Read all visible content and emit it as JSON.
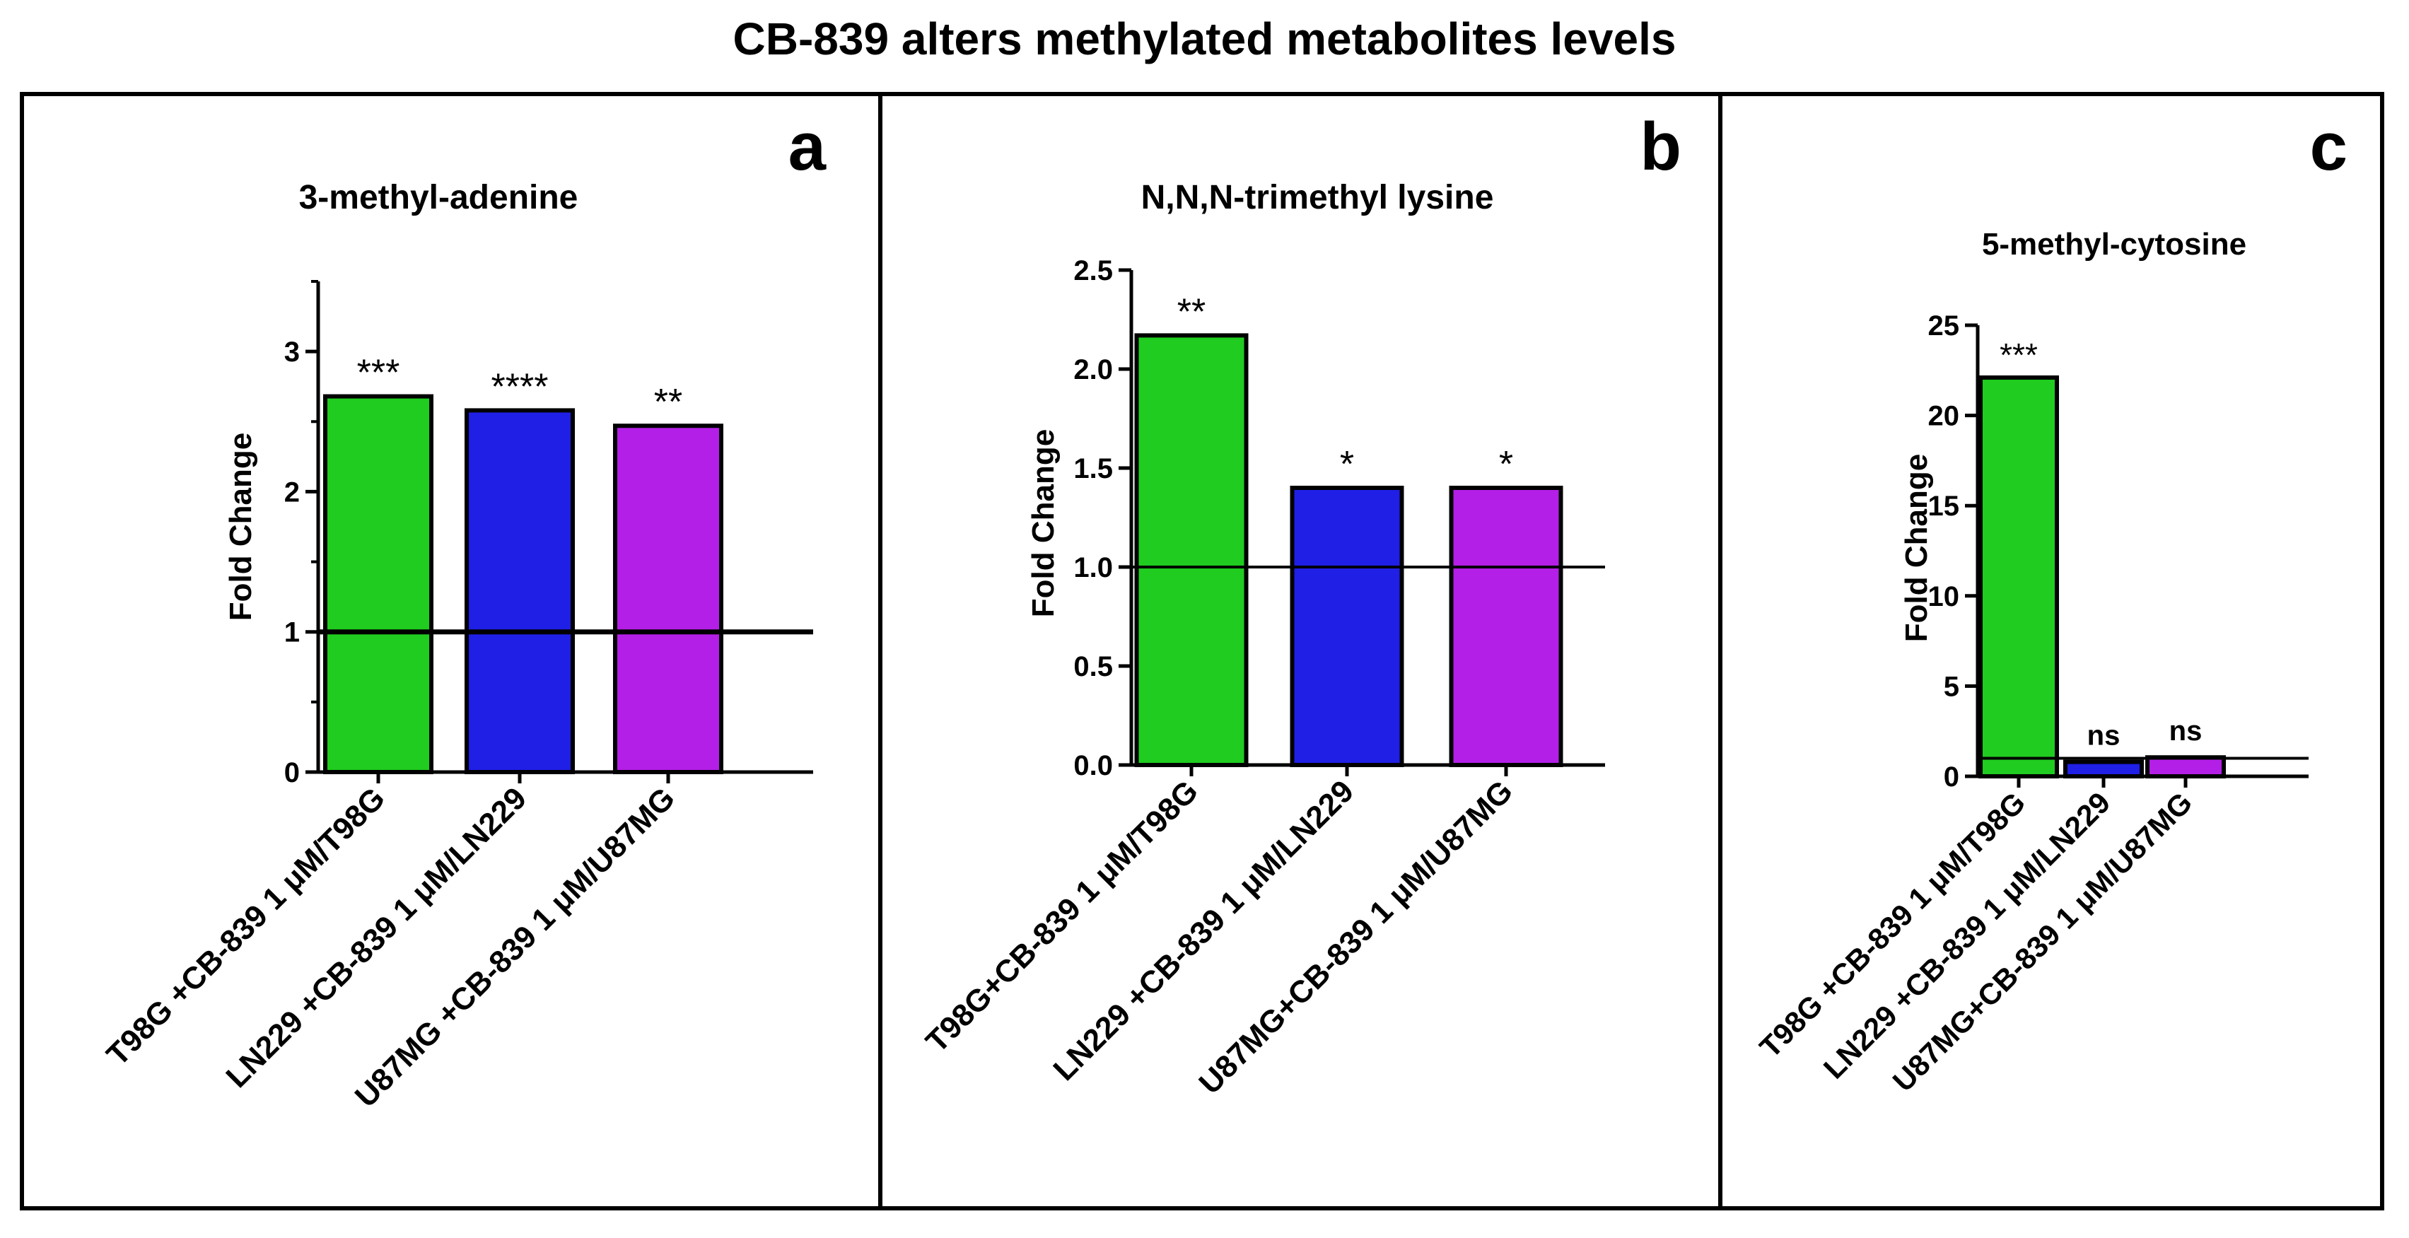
{
  "figure_title": "CB-839 alters methylated metabolites levels",
  "colors": {
    "green": "#1fcc1f",
    "blue": "#1f1fe6",
    "magenta": "#b31fe6",
    "axis": "#000000"
  },
  "chart_data": [
    {
      "type": "bar",
      "panel_label": "a",
      "title": "3-methyl-adenine",
      "xlabel": "",
      "ylabel": "Fold Change",
      "ylim": [
        0,
        3.5
      ],
      "yticks": [
        "0",
        "1",
        "2",
        "3"
      ],
      "reference_line": 1,
      "categories": [
        "T98G +CB-839 1 μM/T98G",
        "LN229 +CB-839 1 μM/LN229",
        "U87MG +CB-839 1 μM/U87MG"
      ],
      "values": [
        2.68,
        2.58,
        2.47
      ],
      "significance": [
        "***",
        "****",
        "**"
      ],
      "colors": [
        "#1fcc1f",
        "#1f1fe6",
        "#b31fe6"
      ]
    },
    {
      "type": "bar",
      "panel_label": "b",
      "title": "N,N,N-trimethyl lysine",
      "xlabel": "",
      "ylabel": "Fold Change",
      "ylim": [
        0,
        2.5
      ],
      "yticks": [
        "0.0",
        "0.5",
        "1.0",
        "1.5",
        "2.0",
        "2.5"
      ],
      "reference_line": 1,
      "categories": [
        "T98G+CB-839 1 μM/T98G",
        "LN229 +CB-839 1 μM/LN229",
        "U87MG+CB-839 1  μM/U87MG"
      ],
      "values": [
        2.17,
        1.4,
        1.4
      ],
      "significance": [
        "**",
        "*",
        "*"
      ],
      "colors": [
        "#1fcc1f",
        "#1f1fe6",
        "#b31fe6"
      ]
    },
    {
      "type": "bar",
      "panel_label": "c",
      "title": "5-methyl-cytosine",
      "xlabel": "",
      "ylabel": "Fold Change",
      "ylim": [
        0,
        25
      ],
      "yticks": [
        "0",
        "5",
        "10",
        "15",
        "20",
        "25"
      ],
      "reference_line": 1,
      "categories": [
        "T98G +CB-839 1 μM/T98G",
        "LN229 +CB-839 1 μM/LN229",
        "U87MG+CB-839 1  μM/U87MG"
      ],
      "values": [
        22.1,
        0.8,
        1.05
      ],
      "significance": [
        "***",
        "ns",
        "ns"
      ],
      "colors": [
        "#1fcc1f",
        "#1f1fe6",
        "#b31fe6"
      ]
    }
  ]
}
